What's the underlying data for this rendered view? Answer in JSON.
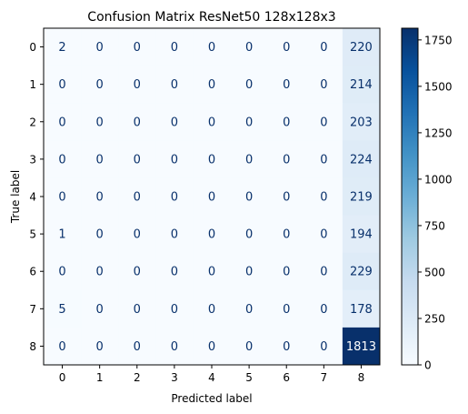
{
  "chart_data": {
    "type": "heatmap",
    "title": "Confusion Matrix ResNet50 128x128x3",
    "xlabel": "Predicted label",
    "ylabel": "True label",
    "x_categories": [
      "0",
      "1",
      "2",
      "3",
      "4",
      "5",
      "6",
      "7",
      "8"
    ],
    "y_categories": [
      "0",
      "1",
      "2",
      "3",
      "4",
      "5",
      "6",
      "7",
      "8"
    ],
    "values": [
      [
        2,
        0,
        0,
        0,
        0,
        0,
        0,
        0,
        220
      ],
      [
        0,
        0,
        0,
        0,
        0,
        0,
        0,
        0,
        214
      ],
      [
        0,
        0,
        0,
        0,
        0,
        0,
        0,
        0,
        203
      ],
      [
        0,
        0,
        0,
        0,
        0,
        0,
        0,
        0,
        224
      ],
      [
        0,
        0,
        0,
        0,
        0,
        0,
        0,
        0,
        219
      ],
      [
        1,
        0,
        0,
        0,
        0,
        0,
        0,
        0,
        194
      ],
      [
        0,
        0,
        0,
        0,
        0,
        0,
        0,
        0,
        229
      ],
      [
        5,
        0,
        0,
        0,
        0,
        0,
        0,
        0,
        178
      ],
      [
        0,
        0,
        0,
        0,
        0,
        0,
        0,
        0,
        1813
      ]
    ],
    "colormap": "Blues",
    "value_range": [
      0,
      1813
    ],
    "colorbar_ticks": [
      "0",
      "250",
      "500",
      "750",
      "1000",
      "1250",
      "1500",
      "1750"
    ],
    "grid": false
  }
}
